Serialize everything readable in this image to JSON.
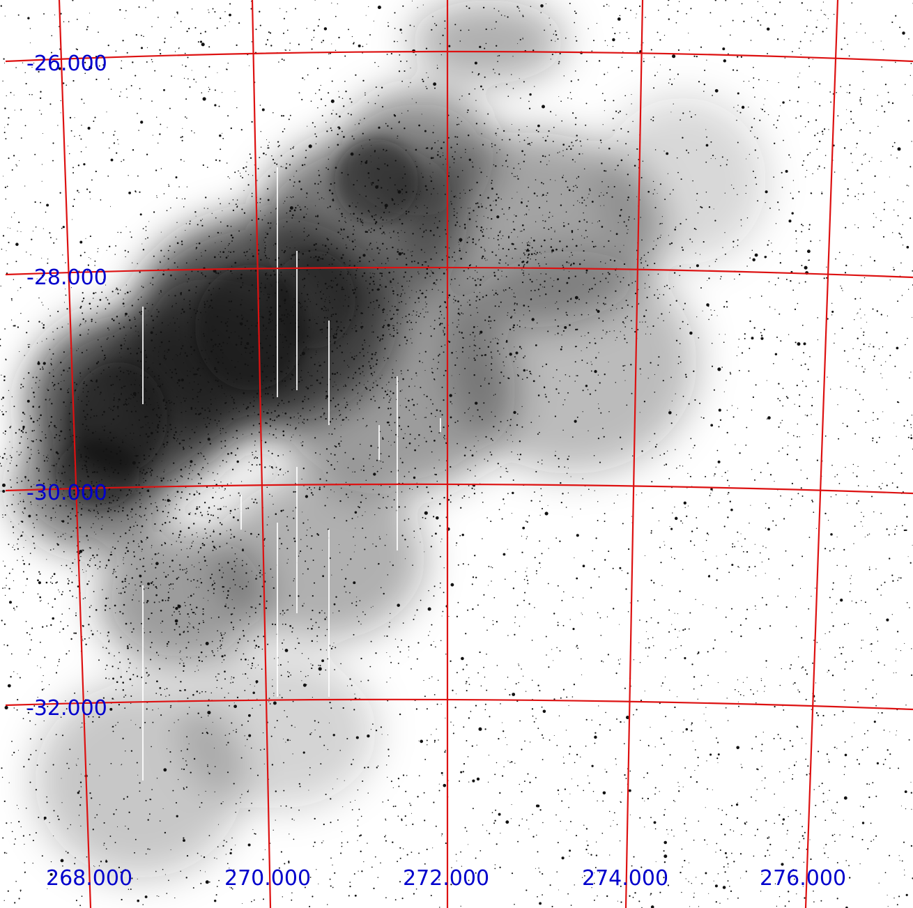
{
  "image": {
    "subject": "star-field",
    "colors": {
      "background": "#ffffff",
      "stars": "#111111",
      "dust_cloud": "#1e1e1e",
      "grid_lines": "#dd1111",
      "labels": "#0000cc"
    }
  },
  "grid": {
    "dec_labels": [
      "-26.000",
      "-28.000",
      "-30.000",
      "-32.000"
    ],
    "ra_labels": [
      "268.000",
      "270.000",
      "272.000",
      "274.000",
      "276.000"
    ]
  }
}
